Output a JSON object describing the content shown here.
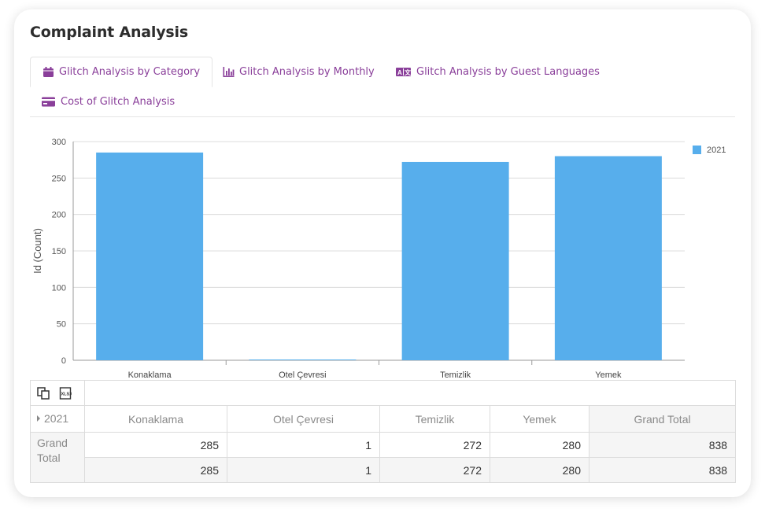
{
  "page": {
    "title": "Complaint Analysis"
  },
  "tabs": [
    {
      "label": "Glitch Analysis by Category",
      "icon": "calendar-icon",
      "active": true
    },
    {
      "label": "Glitch Analysis by Monthly",
      "icon": "bar-chart-icon",
      "active": false
    },
    {
      "label": "Glitch Analysis by Guest Languages",
      "icon": "translate-icon",
      "active": false
    },
    {
      "label": "Cost of Glitch Analysis",
      "icon": "credit-card-icon",
      "active": false
    }
  ],
  "colors": {
    "accent": "#8a3f9a",
    "bar": "#57aeec"
  },
  "chart_data": {
    "type": "bar",
    "categories": [
      "Konaklama",
      "Otel Çevresi",
      "Temizlik",
      "Yemek"
    ],
    "series": [
      {
        "name": "2021",
        "values": [
          285,
          1,
          272,
          280
        ]
      }
    ],
    "ylabel": "Id (Count)",
    "xlabel": "",
    "ylim": [
      0,
      300
    ],
    "yticks": [
      0,
      50,
      100,
      150,
      200,
      250,
      300
    ],
    "grid": true,
    "legend": "top-right"
  },
  "pivot": {
    "toolbar": [
      {
        "icon": "copy-icon"
      },
      {
        "icon": "xlsx-export-icon"
      }
    ],
    "column_field": "2021",
    "headers": [
      "Konaklama",
      "Otel Çevresi",
      "Temizlik",
      "Yemek",
      "Grand Total"
    ],
    "row_label": "Grand Total",
    "row_values": [
      "285",
      "1",
      "272",
      "280",
      "838"
    ],
    "total_values": [
      "285",
      "1",
      "272",
      "280",
      "838"
    ]
  }
}
